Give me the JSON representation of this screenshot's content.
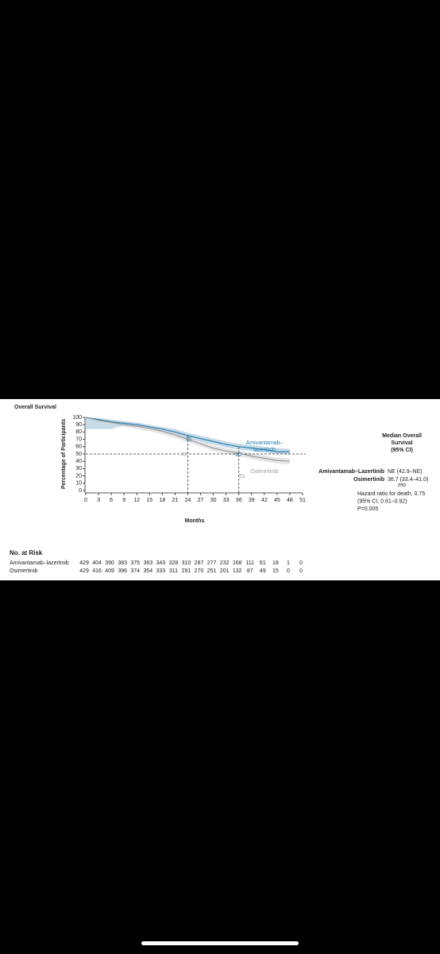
{
  "chart_data": {
    "type": "line",
    "title": "Overall Survival",
    "y_label": "Percentage of Participants",
    "x_label": "Months",
    "x": [
      0,
      3,
      6,
      9,
      12,
      15,
      18,
      21,
      24,
      27,
      30,
      33,
      36,
      39,
      42,
      45,
      48
    ],
    "series": [
      {
        "name": "Amivantamab–lazertinib",
        "label_lines": [
          "Amivantamab–",
          "lazertinib"
        ],
        "color": "#2a7fb0",
        "band_color": "#9fc3d8",
        "values": [
          100,
          97,
          94,
          92,
          90,
          87,
          84,
          80,
          75,
          71,
          67,
          63,
          60,
          58,
          56,
          53,
          53
        ],
        "lower": [
          84,
          84,
          84,
          89,
          87,
          84,
          80,
          76,
          71,
          67,
          63,
          59,
          56,
          54,
          52,
          50,
          49
        ],
        "upper": [
          100,
          99,
          97,
          95,
          93,
          90,
          87,
          84,
          79,
          75,
          71,
          67,
          64,
          62,
          60,
          58,
          57
        ]
      },
      {
        "name": "Osimertinib",
        "label_lines": [
          "Osimertinib"
        ],
        "color": "#9a9a9a",
        "band_color": "#d6d6d6",
        "values": [
          100,
          96,
          93,
          90,
          88,
          85,
          81,
          76,
          70,
          64,
          58,
          54,
          51,
          47,
          44,
          41,
          40
        ],
        "lower": [
          100,
          94,
          90,
          87,
          84,
          81,
          77,
          72,
          66,
          60,
          54,
          50,
          47,
          43,
          40,
          37,
          36
        ],
        "upper": [
          100,
          98,
          96,
          93,
          91,
          88,
          85,
          80,
          74,
          68,
          62,
          58,
          55,
          51,
          48,
          45,
          44
        ]
      }
    ],
    "annotations": [
      "75",
      "70",
      "60",
      "51"
    ],
    "reference_lines": {
      "y": 50,
      "x": [
        24,
        36
      ]
    },
    "xlim": [
      0,
      51
    ],
    "xticks": [
      0,
      3,
      6,
      9,
      12,
      15,
      18,
      21,
      24,
      27,
      30,
      33,
      36,
      39,
      42,
      45,
      48,
      51
    ],
    "ylim": [
      0,
      100
    ],
    "yticks": [
      0,
      10,
      20,
      30,
      40,
      50,
      60,
      70,
      80,
      90,
      100
    ],
    "legend": {
      "title_lines": [
        "Median Overall",
        "Survival",
        "(95% CI)"
      ],
      "unit": "mo",
      "rows": [
        {
          "name": "Amivantamab–Lazertinib",
          "value": "NE (42.9–NE)"
        },
        {
          "name": "Osimertinib",
          "value": "36.7 (33.4–41.0)"
        }
      ],
      "hazard_lines": [
        "Hazard ratio for death, 0.75",
        "(95% CI, 0.61–0.92)",
        "P=0.005"
      ]
    },
    "risk_table": {
      "title": "No. at Risk",
      "rows": [
        {
          "name": "Amivantamab–lazertinib",
          "counts": [
            429,
            404,
            390,
            383,
            375,
            363,
            343,
            328,
            310,
            287,
            277,
            232,
            168,
            111,
            61,
            18,
            1,
            0
          ]
        },
        {
          "name": "Osimertinib",
          "counts": [
            429,
            416,
            409,
            396,
            374,
            354,
            333,
            311,
            291,
            270,
            251,
            201,
            132,
            87,
            49,
            15,
            0,
            0
          ]
        }
      ]
    }
  }
}
